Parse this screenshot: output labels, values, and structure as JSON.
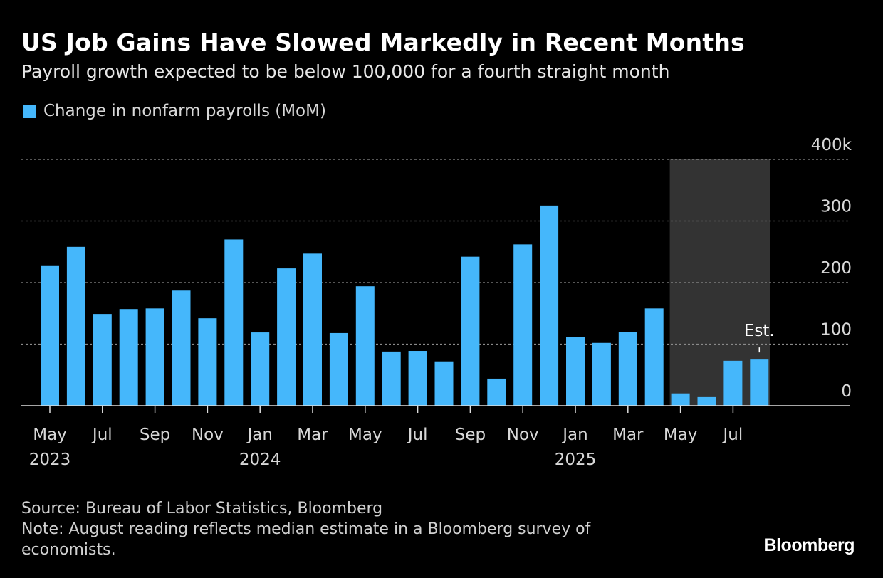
{
  "title": "US Job Gains Have Slowed Markedly in Recent Months",
  "subtitle": "Payroll growth expected to be below 100,000 for a fourth straight month",
  "footer": {
    "source": "Source: Bureau of Labor Statistics, Bloomberg",
    "note": "Note: August reading reflects median estimate in a Bloomberg survey of economists."
  },
  "logo": "Bloomberg",
  "colors": {
    "bar": "#45b7fb",
    "background": "#000000",
    "shade": "#333333"
  },
  "chart_data": {
    "type": "bar",
    "legend": [
      "Change in nonfarm payrolls (MoM)"
    ],
    "legend_position": "top-left",
    "categories": [
      "May 2023",
      "Jun 2023",
      "Jul 2023",
      "Aug 2023",
      "Sep 2023",
      "Oct 2023",
      "Nov 2023",
      "Dec 2023",
      "Jan 2024",
      "Feb 2024",
      "Mar 2024",
      "Apr 2024",
      "May 2024",
      "Jun 2024",
      "Jul 2024",
      "Aug 2024",
      "Sep 2024",
      "Oct 2024",
      "Nov 2024",
      "Dec 2024",
      "Jan 2025",
      "Feb 2025",
      "Mar 2025",
      "Apr 2025",
      "May 2025",
      "Jun 2025",
      "Jul 2025",
      "Aug 2025"
    ],
    "series": [
      {
        "name": "Change in nonfarm payrolls (MoM)",
        "values": [
          228,
          258,
          149,
          157,
          158,
          187,
          142,
          270,
          119,
          223,
          247,
          118,
          194,
          88,
          89,
          72,
          242,
          44,
          262,
          325,
          111,
          102,
          120,
          158,
          20,
          14,
          73,
          75
        ]
      }
    ],
    "ylim": [
      0,
      400
    ],
    "yticks": [
      0,
      100,
      200,
      300,
      400
    ],
    "ytick_labels": [
      "0",
      "100",
      "200",
      "300",
      "400k"
    ],
    "xtick_labels": [
      {
        "month": "May",
        "year": "2023"
      },
      {
        "month": "Jul",
        "year": ""
      },
      {
        "month": "Sep",
        "year": ""
      },
      {
        "month": "Nov",
        "year": ""
      },
      {
        "month": "Jan",
        "year": "2024"
      },
      {
        "month": "Mar",
        "year": ""
      },
      {
        "month": "May",
        "year": ""
      },
      {
        "month": "Jul",
        "year": ""
      },
      {
        "month": "Sep",
        "year": ""
      },
      {
        "month": "Nov",
        "year": ""
      },
      {
        "month": "Jan",
        "year": "2025"
      },
      {
        "month": "Mar",
        "year": ""
      },
      {
        "month": "May",
        "year": ""
      },
      {
        "month": "Jul",
        "year": ""
      }
    ],
    "shaded_range": [
      "May 2025",
      "Aug 2025"
    ],
    "annotation": {
      "text": "Est.",
      "category": "Aug 2025"
    },
    "grid": "horizontal dotted",
    "yaxis_position": "right"
  }
}
